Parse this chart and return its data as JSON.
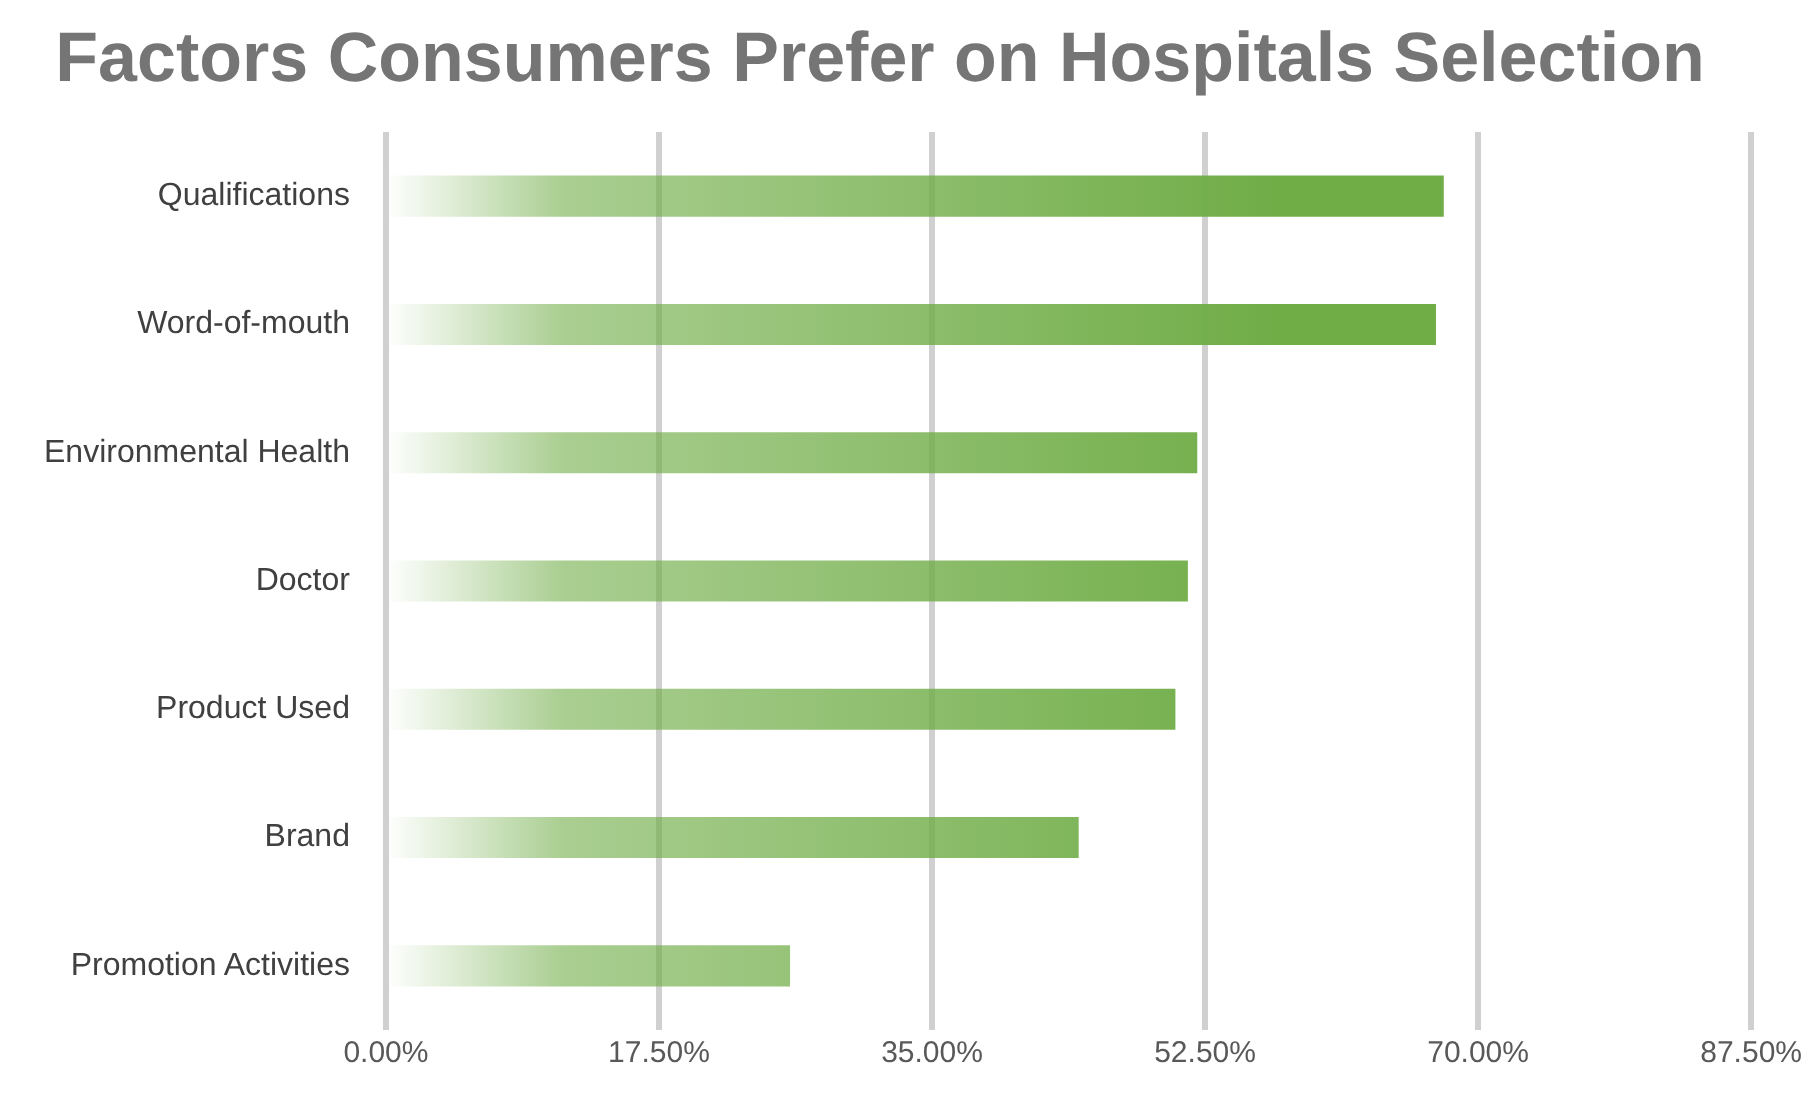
{
  "chart_data": {
    "type": "bar",
    "orientation": "horizontal",
    "title": "Factors Consumers Prefer on Hospitals Selection",
    "categories": [
      "Qualifications",
      "Word-of-mouth",
      "Environmental Health",
      "Doctor",
      "Product Used",
      "Brand",
      "Promotion Activities"
    ],
    "values": [
      67.8,
      67.3,
      52.0,
      51.4,
      50.6,
      44.4,
      25.9
    ],
    "color": "#70ad47",
    "xlim": [
      0,
      87.5
    ],
    "xticks": [
      {
        "value": 0,
        "label": "0.00%"
      },
      {
        "value": 17.5,
        "label": "17.50%"
      },
      {
        "value": 35,
        "label": "35.00%"
      },
      {
        "value": 52.5,
        "label": "52.50%"
      },
      {
        "value": 70,
        "label": "70.00%"
      },
      {
        "value": 87.5,
        "label": "87.50%"
      }
    ],
    "grid": "x",
    "legend": false
  }
}
